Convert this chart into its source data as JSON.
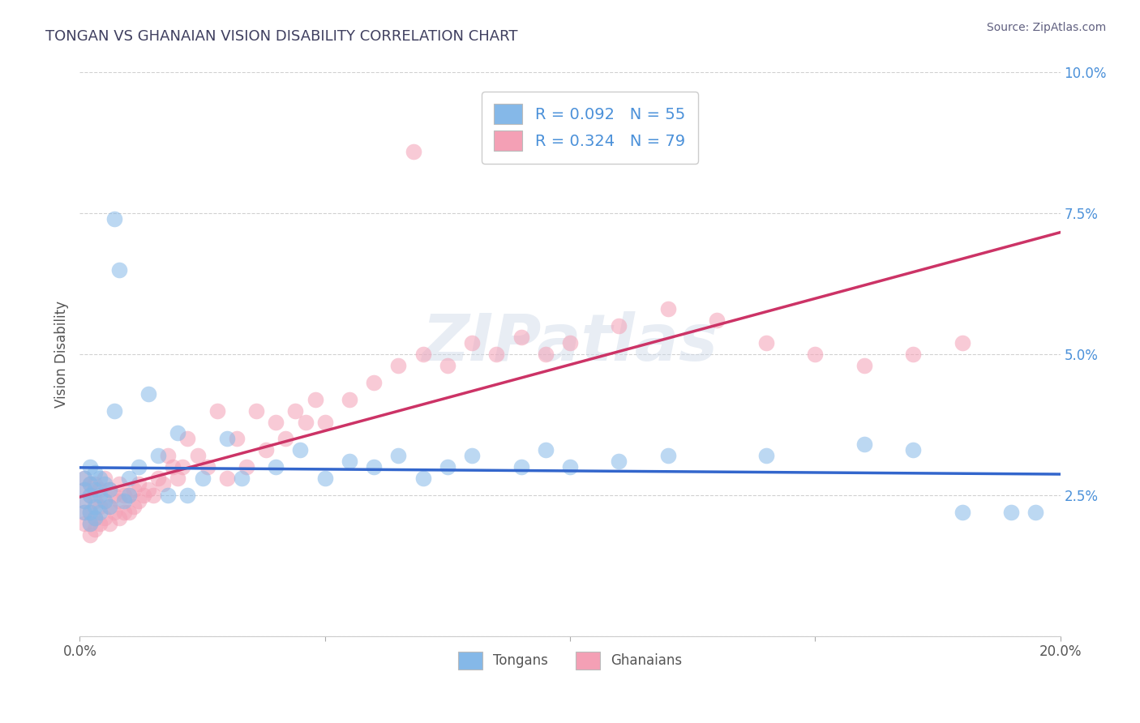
{
  "title": "TONGAN VS GHANAIAN VISION DISABILITY CORRELATION CHART",
  "source": "Source: ZipAtlas.com",
  "ylabel": "Vision Disability",
  "xlim": [
    0.0,
    0.2
  ],
  "ylim": [
    0.0,
    0.1
  ],
  "yticks": [
    0.0,
    0.025,
    0.05,
    0.075,
    0.1
  ],
  "ytick_labels": [
    "",
    "2.5%",
    "5.0%",
    "7.5%",
    "10.0%"
  ],
  "xticks": [
    0.0,
    0.05,
    0.1,
    0.15,
    0.2
  ],
  "xtick_labels": [
    "0.0%",
    "",
    "",
    "",
    "20.0%"
  ],
  "legend_line1": "R = 0.092   N = 55",
  "legend_line2": "R = 0.324   N = 79",
  "tongan_color": "#85b8e8",
  "ghanaian_color": "#f4a0b5",
  "tongan_line_color": "#3366cc",
  "ghanaian_line_color": "#cc3366",
  "title_color": "#404060",
  "source_color": "#606080",
  "background_color": "#ffffff",
  "grid_color": "#cccccc",
  "watermark": "ZIPatlas",
  "tongan_x": [
    0.001,
    0.001,
    0.001,
    0.001,
    0.002,
    0.002,
    0.002,
    0.002,
    0.002,
    0.003,
    0.003,
    0.003,
    0.003,
    0.004,
    0.004,
    0.004,
    0.005,
    0.005,
    0.006,
    0.006,
    0.007,
    0.007,
    0.008,
    0.009,
    0.01,
    0.01,
    0.012,
    0.014,
    0.016,
    0.018,
    0.02,
    0.022,
    0.025,
    0.03,
    0.033,
    0.04,
    0.045,
    0.05,
    0.055,
    0.06,
    0.065,
    0.07,
    0.075,
    0.08,
    0.09,
    0.095,
    0.1,
    0.11,
    0.12,
    0.14,
    0.16,
    0.17,
    0.18,
    0.19,
    0.195
  ],
  "tongan_y": [
    0.022,
    0.024,
    0.026,
    0.028,
    0.02,
    0.022,
    0.025,
    0.027,
    0.03,
    0.021,
    0.023,
    0.026,
    0.029,
    0.022,
    0.025,
    0.028,
    0.024,
    0.027,
    0.023,
    0.026,
    0.074,
    0.04,
    0.065,
    0.024,
    0.025,
    0.028,
    0.03,
    0.043,
    0.032,
    0.025,
    0.036,
    0.025,
    0.028,
    0.035,
    0.028,
    0.03,
    0.033,
    0.028,
    0.031,
    0.03,
    0.032,
    0.028,
    0.03,
    0.032,
    0.03,
    0.033,
    0.03,
    0.031,
    0.032,
    0.032,
    0.034,
    0.033,
    0.022,
    0.022,
    0.022
  ],
  "ghanaian_x": [
    0.001,
    0.001,
    0.001,
    0.001,
    0.001,
    0.002,
    0.002,
    0.002,
    0.002,
    0.002,
    0.003,
    0.003,
    0.003,
    0.003,
    0.004,
    0.004,
    0.004,
    0.005,
    0.005,
    0.005,
    0.006,
    0.006,
    0.006,
    0.007,
    0.007,
    0.008,
    0.008,
    0.008,
    0.009,
    0.009,
    0.01,
    0.01,
    0.011,
    0.011,
    0.012,
    0.012,
    0.013,
    0.014,
    0.015,
    0.016,
    0.017,
    0.018,
    0.019,
    0.02,
    0.021,
    0.022,
    0.024,
    0.026,
    0.028,
    0.03,
    0.032,
    0.034,
    0.036,
    0.038,
    0.04,
    0.042,
    0.044,
    0.046,
    0.048,
    0.05,
    0.055,
    0.06,
    0.065,
    0.07,
    0.075,
    0.08,
    0.085,
    0.09,
    0.095,
    0.1,
    0.11,
    0.12,
    0.13,
    0.14,
    0.15,
    0.16,
    0.17,
    0.18,
    0.068
  ],
  "ghanaian_y": [
    0.02,
    0.022,
    0.024,
    0.026,
    0.028,
    0.018,
    0.02,
    0.022,
    0.025,
    0.027,
    0.019,
    0.021,
    0.024,
    0.027,
    0.02,
    0.023,
    0.026,
    0.021,
    0.024,
    0.028,
    0.02,
    0.023,
    0.026,
    0.022,
    0.025,
    0.021,
    0.024,
    0.027,
    0.022,
    0.025,
    0.022,
    0.025,
    0.023,
    0.026,
    0.024,
    0.027,
    0.025,
    0.026,
    0.025,
    0.028,
    0.027,
    0.032,
    0.03,
    0.028,
    0.03,
    0.035,
    0.032,
    0.03,
    0.04,
    0.028,
    0.035,
    0.03,
    0.04,
    0.033,
    0.038,
    0.035,
    0.04,
    0.038,
    0.042,
    0.038,
    0.042,
    0.045,
    0.048,
    0.05,
    0.048,
    0.052,
    0.05,
    0.053,
    0.05,
    0.052,
    0.055,
    0.058,
    0.056,
    0.052,
    0.05,
    0.048,
    0.05,
    0.052,
    0.086
  ]
}
